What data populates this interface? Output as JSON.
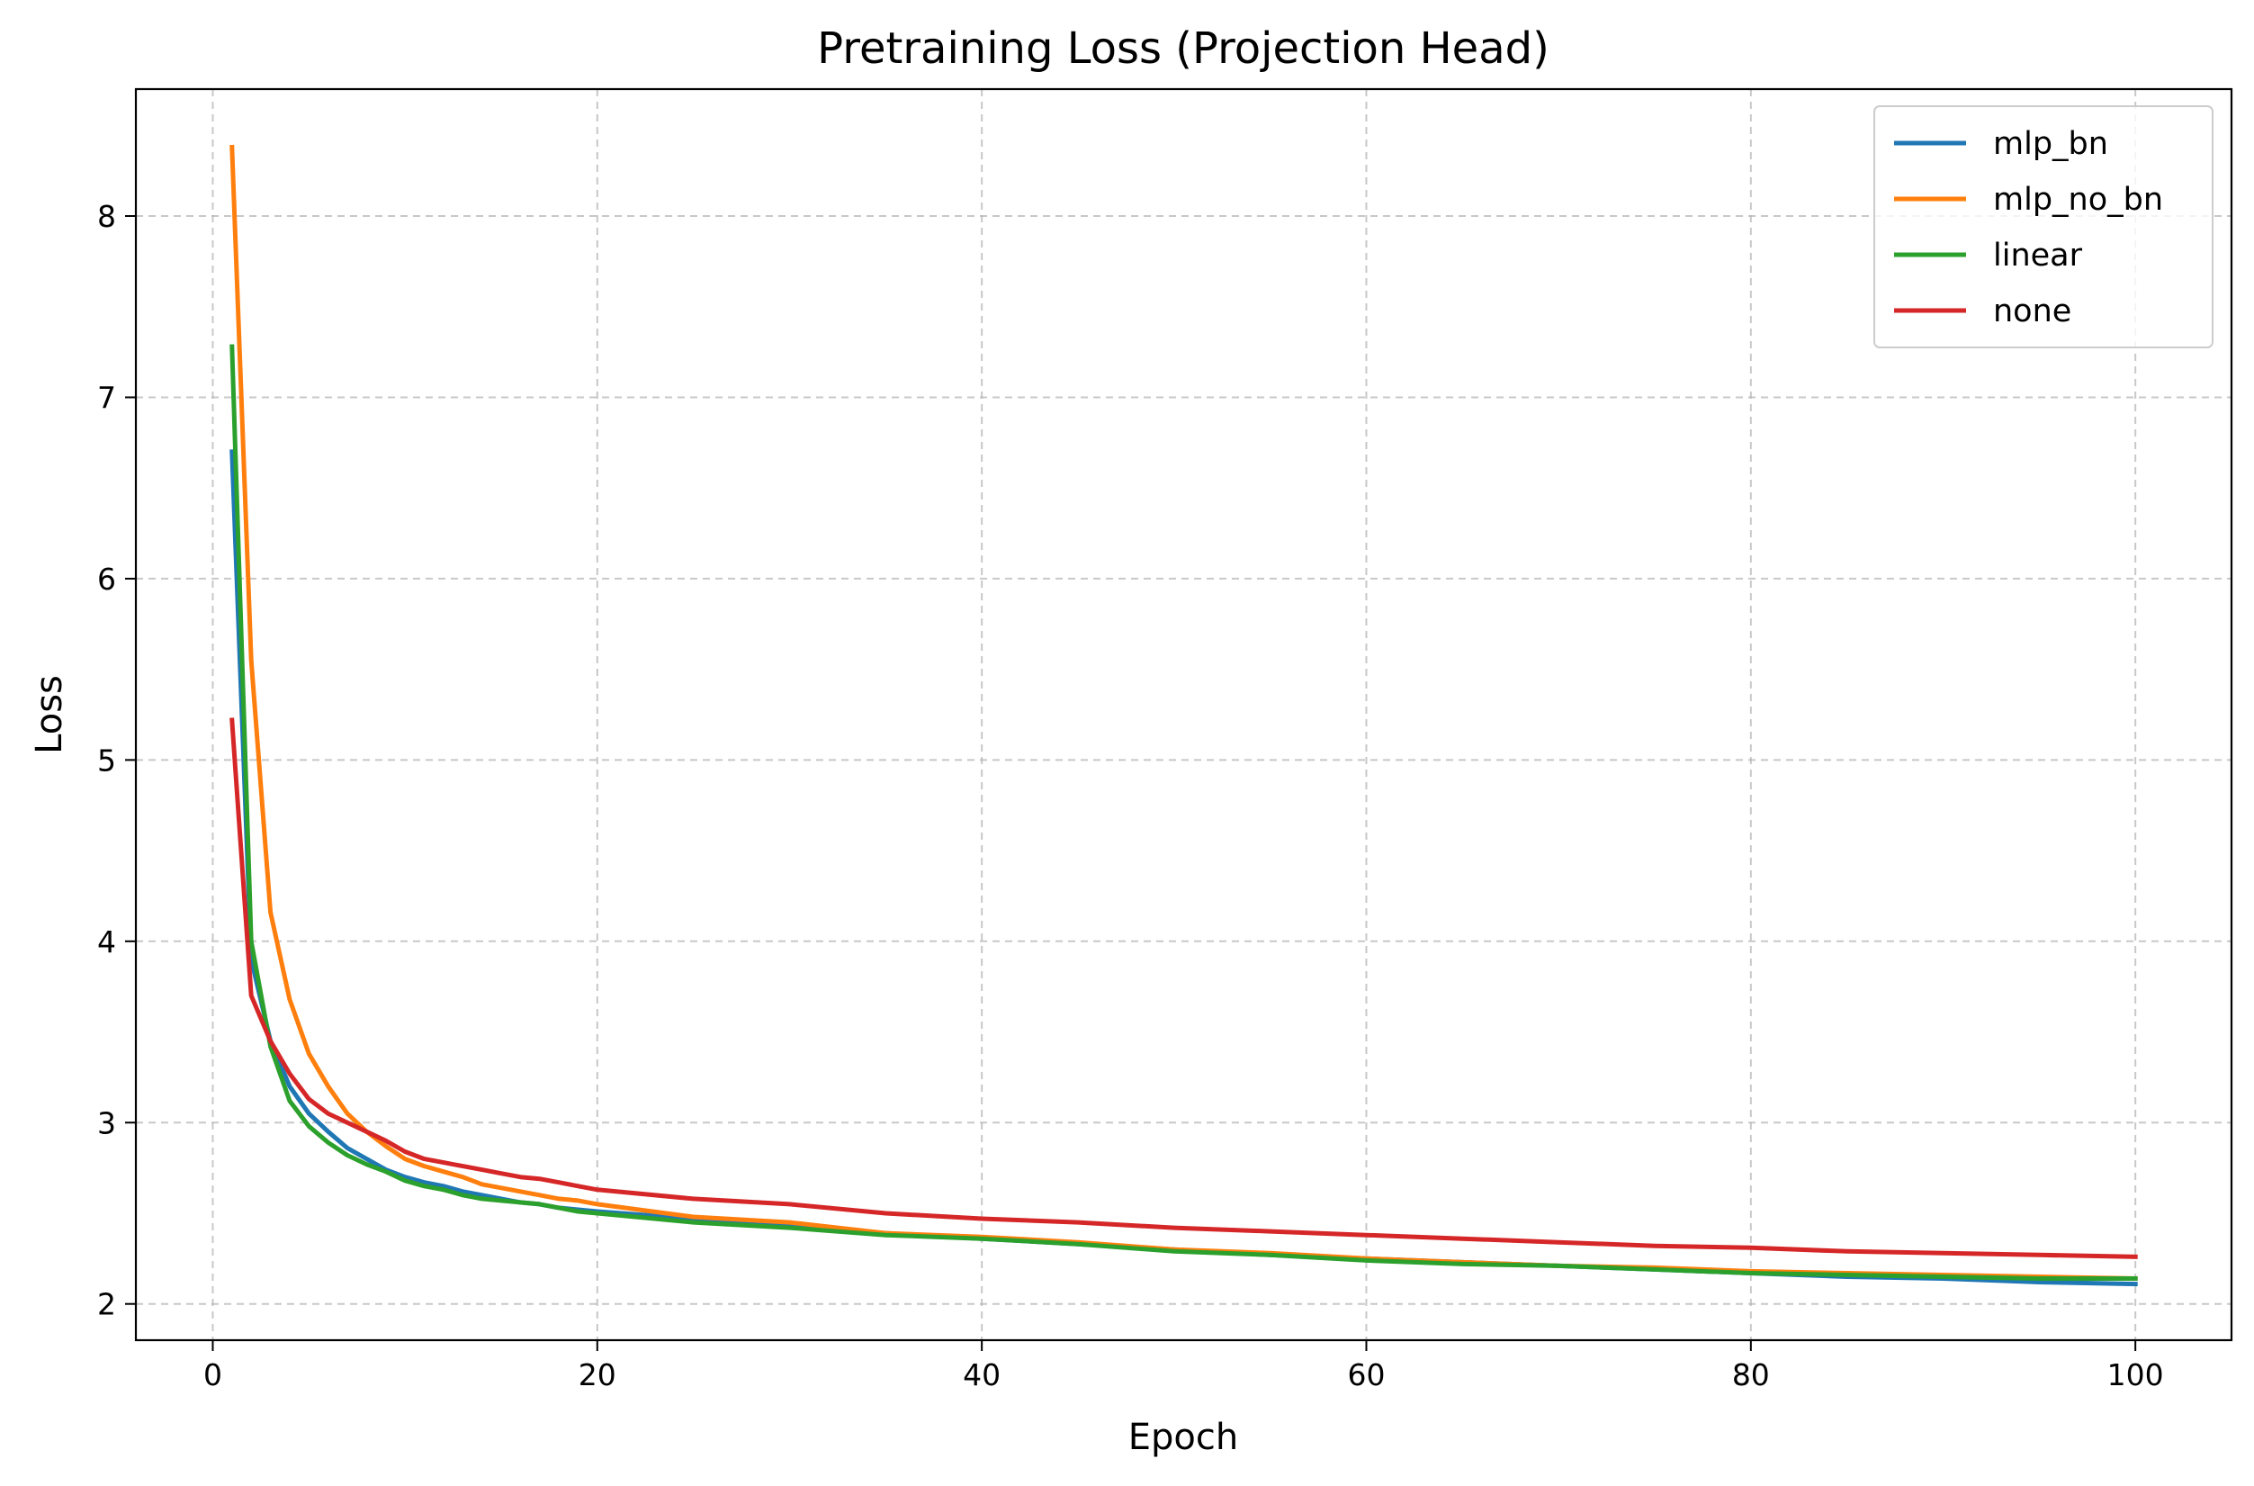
{
  "chart_data": {
    "type": "line",
    "title": "Pretraining Loss (Projection Head)",
    "xlabel": "Epoch",
    "ylabel": "Loss",
    "xlim": [
      -4,
      105
    ],
    "ylim": [
      1.8,
      8.7
    ],
    "xticks": [
      0,
      20,
      40,
      60,
      80,
      100
    ],
    "yticks": [
      2,
      3,
      4,
      5,
      6,
      7,
      8
    ],
    "grid": true,
    "legend_position": "top-right",
    "series": [
      {
        "name": "mlp_bn",
        "color": "#1f77b4",
        "x": [
          1,
          2,
          3,
          4,
          5,
          6,
          7,
          8,
          9,
          10,
          11,
          12,
          13,
          14,
          15,
          16,
          17,
          18,
          19,
          20,
          25,
          30,
          35,
          40,
          45,
          50,
          55,
          60,
          65,
          70,
          75,
          80,
          85,
          90,
          95,
          100
        ],
        "y": [
          6.7,
          3.9,
          3.45,
          3.2,
          3.05,
          2.95,
          2.86,
          2.8,
          2.74,
          2.7,
          2.67,
          2.65,
          2.62,
          2.6,
          2.58,
          2.56,
          2.55,
          2.53,
          2.52,
          2.51,
          2.47,
          2.43,
          2.39,
          2.36,
          2.33,
          2.3,
          2.27,
          2.25,
          2.23,
          2.21,
          2.19,
          2.17,
          2.15,
          2.14,
          2.12,
          2.11
        ]
      },
      {
        "name": "mlp_no_bn",
        "color": "#ff7f0e",
        "x": [
          1,
          2,
          3,
          4,
          5,
          6,
          7,
          8,
          9,
          10,
          11,
          12,
          13,
          14,
          15,
          16,
          17,
          18,
          19,
          20,
          25,
          30,
          35,
          40,
          45,
          50,
          55,
          60,
          65,
          70,
          75,
          80,
          85,
          90,
          95,
          100
        ],
        "y": [
          8.38,
          5.55,
          4.16,
          3.68,
          3.38,
          3.2,
          3.05,
          2.95,
          2.87,
          2.8,
          2.76,
          2.73,
          2.7,
          2.66,
          2.64,
          2.62,
          2.6,
          2.58,
          2.57,
          2.55,
          2.48,
          2.45,
          2.39,
          2.37,
          2.34,
          2.3,
          2.28,
          2.25,
          2.23,
          2.21,
          2.2,
          2.18,
          2.17,
          2.16,
          2.15,
          2.14
        ]
      },
      {
        "name": "linear",
        "color": "#2ca02c",
        "x": [
          1,
          2,
          3,
          4,
          5,
          6,
          7,
          8,
          9,
          10,
          11,
          12,
          13,
          14,
          15,
          16,
          17,
          18,
          19,
          20,
          25,
          30,
          35,
          40,
          45,
          50,
          55,
          60,
          65,
          70,
          75,
          80,
          85,
          90,
          95,
          100
        ],
        "y": [
          7.28,
          4.0,
          3.42,
          3.12,
          2.98,
          2.89,
          2.82,
          2.77,
          2.73,
          2.68,
          2.65,
          2.63,
          2.6,
          2.58,
          2.57,
          2.56,
          2.55,
          2.53,
          2.51,
          2.5,
          2.45,
          2.42,
          2.38,
          2.36,
          2.33,
          2.29,
          2.27,
          2.24,
          2.22,
          2.21,
          2.19,
          2.17,
          2.16,
          2.15,
          2.14,
          2.14
        ]
      },
      {
        "name": "none",
        "color": "#d62728",
        "x": [
          1,
          2,
          3,
          4,
          5,
          6,
          7,
          8,
          9,
          10,
          11,
          12,
          13,
          14,
          15,
          16,
          17,
          18,
          19,
          20,
          25,
          30,
          35,
          40,
          45,
          50,
          55,
          60,
          65,
          70,
          75,
          80,
          85,
          90,
          95,
          100
        ],
        "y": [
          5.22,
          3.7,
          3.45,
          3.27,
          3.13,
          3.05,
          3.0,
          2.95,
          2.9,
          2.84,
          2.8,
          2.78,
          2.76,
          2.74,
          2.72,
          2.7,
          2.69,
          2.67,
          2.65,
          2.63,
          2.58,
          2.55,
          2.5,
          2.47,
          2.45,
          2.42,
          2.4,
          2.38,
          2.36,
          2.34,
          2.32,
          2.31,
          2.29,
          2.28,
          2.27,
          2.26
        ]
      }
    ]
  }
}
